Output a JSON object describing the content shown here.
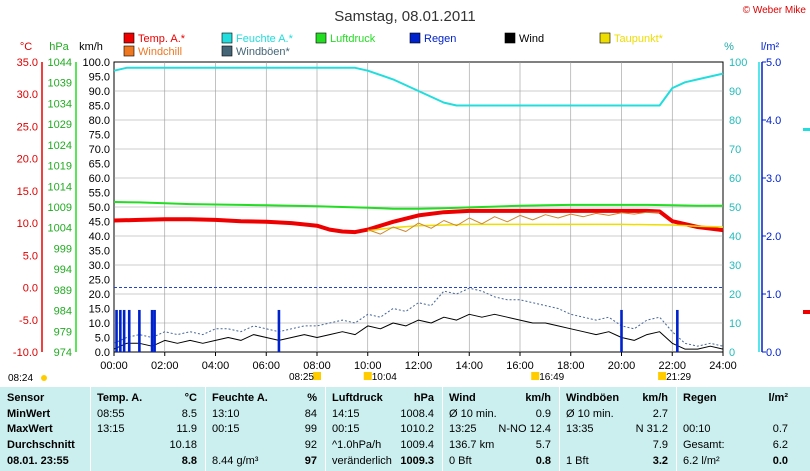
{
  "header": {
    "title": "Samstag, 08.01.2011",
    "copyright": "© Weber Mike"
  },
  "legend": [
    {
      "label": "Temp. A.*",
      "color": "#ee0000"
    },
    {
      "label": "Feuchte A.*",
      "color": "#22dddd"
    },
    {
      "label": "Luftdruck",
      "color": "#22dd22"
    },
    {
      "label": "Regen",
      "color": "#0022cc"
    },
    {
      "label": "Wind",
      "color": "#000000"
    },
    {
      "label": "Taupunkt*",
      "color": "#eedd00"
    },
    {
      "label": "Windchill",
      "color": "#ee7722"
    },
    {
      "label": "Windböen*",
      "color": "#446677"
    }
  ],
  "axis_units": {
    "temp": "°C",
    "pressure": "hPa",
    "wind": "km/h",
    "humidity": "%",
    "rain": "l/m²"
  },
  "colors": {
    "temp": "#ee0000",
    "humidity": "#22dddd",
    "pressure": "#22dd22",
    "rain": "#0022cc",
    "wind": "#000000",
    "gust": "#446699",
    "dew": "#eedd00",
    "windchill": "#cc8833"
  },
  "chart_data": {
    "type": "line",
    "x_label": "time",
    "x_ticks": [
      "00:00",
      "02:00",
      "04:00",
      "06:00",
      "08:00",
      "10:00",
      "12:00",
      "14:00",
      "16:00",
      "18:00",
      "20:00",
      "22:00",
      "24:00"
    ],
    "axes": {
      "temp_ticks": [
        "35.0",
        "30.0",
        "25.0",
        "20.0",
        "15.0",
        "10.0",
        "5.0",
        "0.0",
        "-5.0",
        "-10.0"
      ],
      "pressure_ticks": [
        "1044",
        "1039",
        "1034",
        "1029",
        "1024",
        "1019",
        "1014",
        "1009",
        "1004",
        "999",
        "994",
        "989",
        "984",
        "979",
        "974"
      ],
      "wind_ticks": [
        "100.0",
        "95.0",
        "90.0",
        "85.0",
        "80.0",
        "75.0",
        "70.0",
        "65.0",
        "60.0",
        "55.0",
        "50.0",
        "45.0",
        "40.0",
        "35.0",
        "30.0",
        "25.0",
        "20.0",
        "15.0",
        "10.0",
        "5.0",
        "0.0"
      ],
      "humidity_ticks": [
        "100",
        "90",
        "80",
        "70",
        "60",
        "50",
        "40",
        "30",
        "20",
        "10",
        "0"
      ],
      "rain_ticks": [
        "5.0",
        "4.0",
        "3.0",
        "2.0",
        "1.0",
        "0.0"
      ]
    },
    "wind_range": [
      0,
      100
    ],
    "series": [
      {
        "name": "Temp. A.*",
        "key": "temp",
        "axis": "temp",
        "x": [
          0,
          1,
          2,
          3,
          4,
          5,
          6,
          7,
          8,
          8.5,
          9,
          9.5,
          10,
          11,
          12,
          13,
          14,
          15,
          16,
          17,
          18,
          19,
          20,
          21,
          21.5,
          22,
          23,
          24
        ],
        "y": [
          10.4,
          10.5,
          10.6,
          10.6,
          10.5,
          10.3,
          10.2,
          10.0,
          9.6,
          9.0,
          8.7,
          8.6,
          9.0,
          10.2,
          11.2,
          11.7,
          11.9,
          11.9,
          11.9,
          11.9,
          11.9,
          11.9,
          11.9,
          11.9,
          11.8,
          10.3,
          9.4,
          8.9
        ]
      },
      {
        "name": "Feuchte A.*",
        "key": "humidity",
        "axis": "humidity",
        "x": [
          0,
          0.5,
          1,
          2,
          3,
          4,
          5,
          6,
          7,
          8,
          8.5,
          9,
          9.5,
          10,
          11,
          12,
          13,
          13.5,
          14,
          15,
          16,
          17,
          18,
          19,
          20,
          21,
          21.5,
          22,
          22.5,
          23,
          23.5,
          24
        ],
        "y": [
          97,
          98,
          98,
          98,
          98,
          98,
          98,
          98,
          98,
          98,
          98,
          98,
          98,
          97,
          94,
          90,
          86,
          85,
          85,
          85,
          85,
          85,
          85,
          85,
          85,
          85,
          85,
          91,
          93,
          94,
          95,
          96
        ]
      },
      {
        "name": "Luftdruck",
        "key": "pressure",
        "axis": "pressure",
        "x": [
          0,
          1,
          2,
          3,
          4,
          5,
          6,
          7,
          8,
          9,
          10,
          11,
          12,
          13,
          14,
          15,
          16,
          17,
          18,
          19,
          20,
          21,
          22,
          23,
          24
        ],
        "y": [
          1010.2,
          1010.1,
          1009.9,
          1009.7,
          1009.6,
          1009.5,
          1009.4,
          1009.3,
          1009.2,
          1009.0,
          1008.8,
          1008.6,
          1008.6,
          1008.7,
          1008.9,
          1009.1,
          1009.3,
          1009.4,
          1009.5,
          1009.5,
          1009.5,
          1009.5,
          1009.4,
          1009.3,
          1009.3
        ]
      },
      {
        "name": "Taupunkt*",
        "key": "dew",
        "axis": "temp",
        "x": [
          10,
          11,
          12,
          13,
          14,
          16,
          18,
          20,
          22,
          23,
          24
        ],
        "y": [
          8.8,
          9.3,
          9.6,
          9.7,
          9.8,
          9.8,
          9.8,
          9.8,
          9.7,
          9.5,
          9.4
        ]
      },
      {
        "name": "Windchill",
        "key": "windchill",
        "axis": "temp",
        "x": [
          10,
          10.5,
          11,
          11.5,
          12,
          12.5,
          13,
          13.5,
          14,
          14.5,
          15,
          15.5,
          16,
          16.5,
          17,
          17.5,
          18,
          18.5,
          19,
          19.5,
          20,
          20.5,
          21,
          21.5
        ],
        "y": [
          9.0,
          8.3,
          9.4,
          8.7,
          10.0,
          9.2,
          10.4,
          9.6,
          10.8,
          9.9,
          11.0,
          10.2,
          11.2,
          10.5,
          11.3,
          10.8,
          11.4,
          11.0,
          11.5,
          11.2,
          11.6,
          11.4,
          11.7,
          11.7
        ]
      },
      {
        "name": "Wind",
        "key": "wind",
        "axis": "wind",
        "x": [
          0,
          0.5,
          1,
          1.5,
          2,
          2.5,
          3,
          3.5,
          4,
          4.5,
          5,
          5.5,
          6,
          6.5,
          7,
          7.5,
          8,
          8.5,
          9,
          9.5,
          10,
          10.5,
          11,
          11.5,
          12,
          12.5,
          13,
          13.5,
          14,
          14.5,
          15,
          15.5,
          16,
          16.5,
          17,
          17.5,
          18,
          18.5,
          19,
          19.5,
          20,
          20.5,
          21,
          21.5,
          22,
          22.5,
          23,
          23.5,
          24
        ],
        "y": [
          1,
          3,
          3,
          2,
          4,
          3,
          4,
          3,
          4,
          5,
          4,
          6,
          5,
          4,
          5,
          6,
          5,
          6,
          7,
          6,
          9,
          8,
          10,
          9,
          11,
          10,
          12,
          11,
          13,
          12,
          13,
          12,
          11,
          10,
          10,
          9,
          8,
          7,
          6,
          7,
          5,
          4,
          6,
          7,
          3,
          1,
          1,
          2,
          1
        ]
      },
      {
        "name": "Windböen*",
        "key": "gust",
        "axis": "wind",
        "x": [
          0,
          0.5,
          1,
          1.5,
          2,
          2.5,
          3,
          3.5,
          4,
          4.5,
          5,
          5.5,
          6,
          6.5,
          7,
          7.5,
          8,
          8.5,
          9,
          9.5,
          10,
          10.5,
          11,
          11.5,
          12,
          12.5,
          13,
          13.5,
          14,
          14.5,
          15,
          15.5,
          16,
          16.5,
          17,
          17.5,
          18,
          18.5,
          19,
          19.5,
          20,
          20.5,
          21,
          21.5,
          22,
          22.5,
          23,
          23.5,
          24
        ],
        "y": [
          3,
          5,
          6,
          5,
          7,
          6,
          7,
          6,
          8,
          8,
          7,
          9,
          8,
          7,
          8,
          9,
          9,
          10,
          11,
          10,
          13,
          12,
          15,
          14,
          17,
          16,
          21,
          20,
          22,
          21,
          19,
          18,
          18,
          17,
          16,
          15,
          13,
          12,
          11,
          12,
          9,
          8,
          11,
          12,
          7,
          3,
          2,
          3,
          2
        ]
      },
      {
        "name": "Regen",
        "key": "rain",
        "axis": "wind",
        "type": "bar",
        "x": [
          0.1,
          0.25,
          0.4,
          0.6,
          1.0,
          1.5,
          1.6,
          6.5,
          20.0,
          22.2
        ],
        "y": [
          14.5,
          14.5,
          14.5,
          14.5,
          14.5,
          14.5,
          14.5,
          14.5,
          14.5,
          14.5
        ]
      }
    ],
    "extreme_markers": [
      {
        "label": "08:24",
        "x": 0.0,
        "row": "lower"
      },
      {
        "label": "08:25",
        "x": 8.0,
        "row": "upper"
      },
      {
        "label": "10:04",
        "x": 10.0,
        "row": "upper"
      },
      {
        "label": "16:49",
        "x": 16.6,
        "row": "upper"
      },
      {
        "label": "21:29",
        "x": 21.6,
        "row": "upper"
      }
    ]
  },
  "table": {
    "sensor": {
      "head": "Sensor",
      "rows": [
        "MinWert",
        "MaxWert",
        "Durchschnitt",
        "08.01. 23:55"
      ]
    },
    "temp": {
      "head": "Temp. A.",
      "unit": "°C",
      "c1": [
        "08:55",
        "13:15",
        "",
        ""
      ],
      "c2": [
        "8.5",
        "11.9",
        "10.18",
        "8.8"
      ]
    },
    "humidity": {
      "head": "Feuchte A.",
      "unit": "%",
      "c1": [
        "13:10",
        "00:15",
        "",
        "8.44 g/m³"
      ],
      "c2": [
        "84",
        "99",
        "92",
        "97"
      ]
    },
    "pressure": {
      "head": "Luftdruck",
      "unit": "hPa",
      "c1": [
        "14:15",
        "00:15",
        "^1.0hPa/h",
        "veränderlich"
      ],
      "c2": [
        "1008.4",
        "1010.2",
        "1009.4",
        "1009.3"
      ]
    },
    "wind": {
      "head": "Wind",
      "unit": "km/h",
      "c1": [
        "Ø 10 min.",
        "13:25",
        "136.7 km",
        "0 Bft"
      ],
      "c2": [
        "0.9",
        "N-NO 12.4",
        "5.7",
        "0.8"
      ]
    },
    "gusts": {
      "head": "Windböen",
      "unit": "km/h",
      "c1": [
        "Ø 10 min.",
        "13:35",
        "",
        "1 Bft"
      ],
      "c2": [
        "2.7",
        "N 31.2",
        "7.9",
        "3.2"
      ]
    },
    "rain": {
      "head": "Regen",
      "unit": "l/m²",
      "c1": [
        "",
        "00:10",
        "Gesamt:",
        "6.2 l/m²"
      ],
      "c2": [
        "",
        "0.7",
        "6.2",
        "0.0"
      ]
    }
  }
}
